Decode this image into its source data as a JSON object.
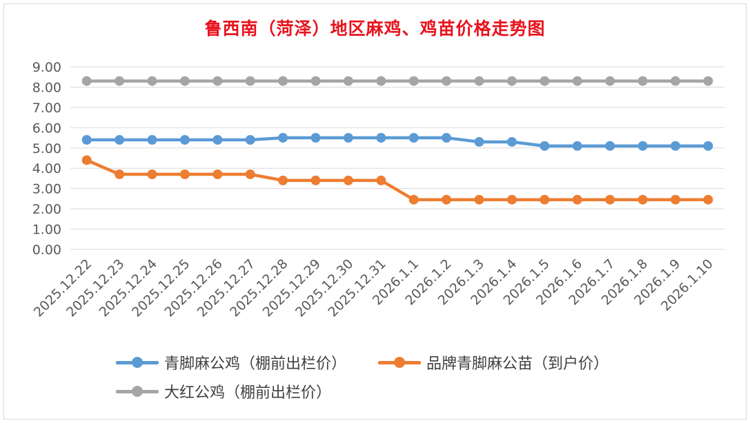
{
  "chart_data": {
    "type": "line",
    "title": "鲁西南（菏泽）地区麻鸡、鸡苗价格走势图",
    "categories": [
      "2025.12.22",
      "2025.12.23",
      "2025.12.24",
      "2025.12.25",
      "2025.12.26",
      "2025.12.27",
      "2025.12.28",
      "2025.12.29",
      "2025.12.30",
      "2025.12.31",
      "2026.1.1",
      "2026.1.2",
      "2026.1.3",
      "2026.1.4",
      "2026.1.5",
      "2026.1.6",
      "2026.1.7",
      "2026.1.8",
      "2026.1.9",
      "2026.1.10"
    ],
    "yticks": [
      "0.00",
      "1.00",
      "2.00",
      "3.00",
      "4.00",
      "5.00",
      "6.00",
      "7.00",
      "8.00",
      "9.00"
    ],
    "ylim": [
      0,
      9
    ],
    "grid": true,
    "legend_position": "bottom",
    "series": [
      {
        "name": "青脚麻公鸡（棚前出栏价）",
        "color": "#5b9bd5",
        "values": [
          5.4,
          5.4,
          5.4,
          5.4,
          5.4,
          5.4,
          5.5,
          5.5,
          5.5,
          5.5,
          5.5,
          5.5,
          5.3,
          5.3,
          5.1,
          5.1,
          5.1,
          5.1,
          5.1,
          5.1
        ]
      },
      {
        "name": "品牌青脚麻公苗（到户价）",
        "color": "#ed7d31",
        "values": [
          4.4,
          3.7,
          3.7,
          3.7,
          3.7,
          3.7,
          3.4,
          3.4,
          3.4,
          3.4,
          2.45,
          2.45,
          2.45,
          2.45,
          2.45,
          2.45,
          2.45,
          2.45,
          2.45,
          2.45
        ]
      },
      {
        "name": "大红公鸡（棚前出栏价）",
        "color": "#a5a5a5",
        "values": [
          8.3,
          8.3,
          8.3,
          8.3,
          8.3,
          8.3,
          8.3,
          8.3,
          8.3,
          8.3,
          8.3,
          8.3,
          8.3,
          8.3,
          8.3,
          8.3,
          8.3,
          8.3,
          8.3,
          8.3
        ]
      }
    ]
  }
}
